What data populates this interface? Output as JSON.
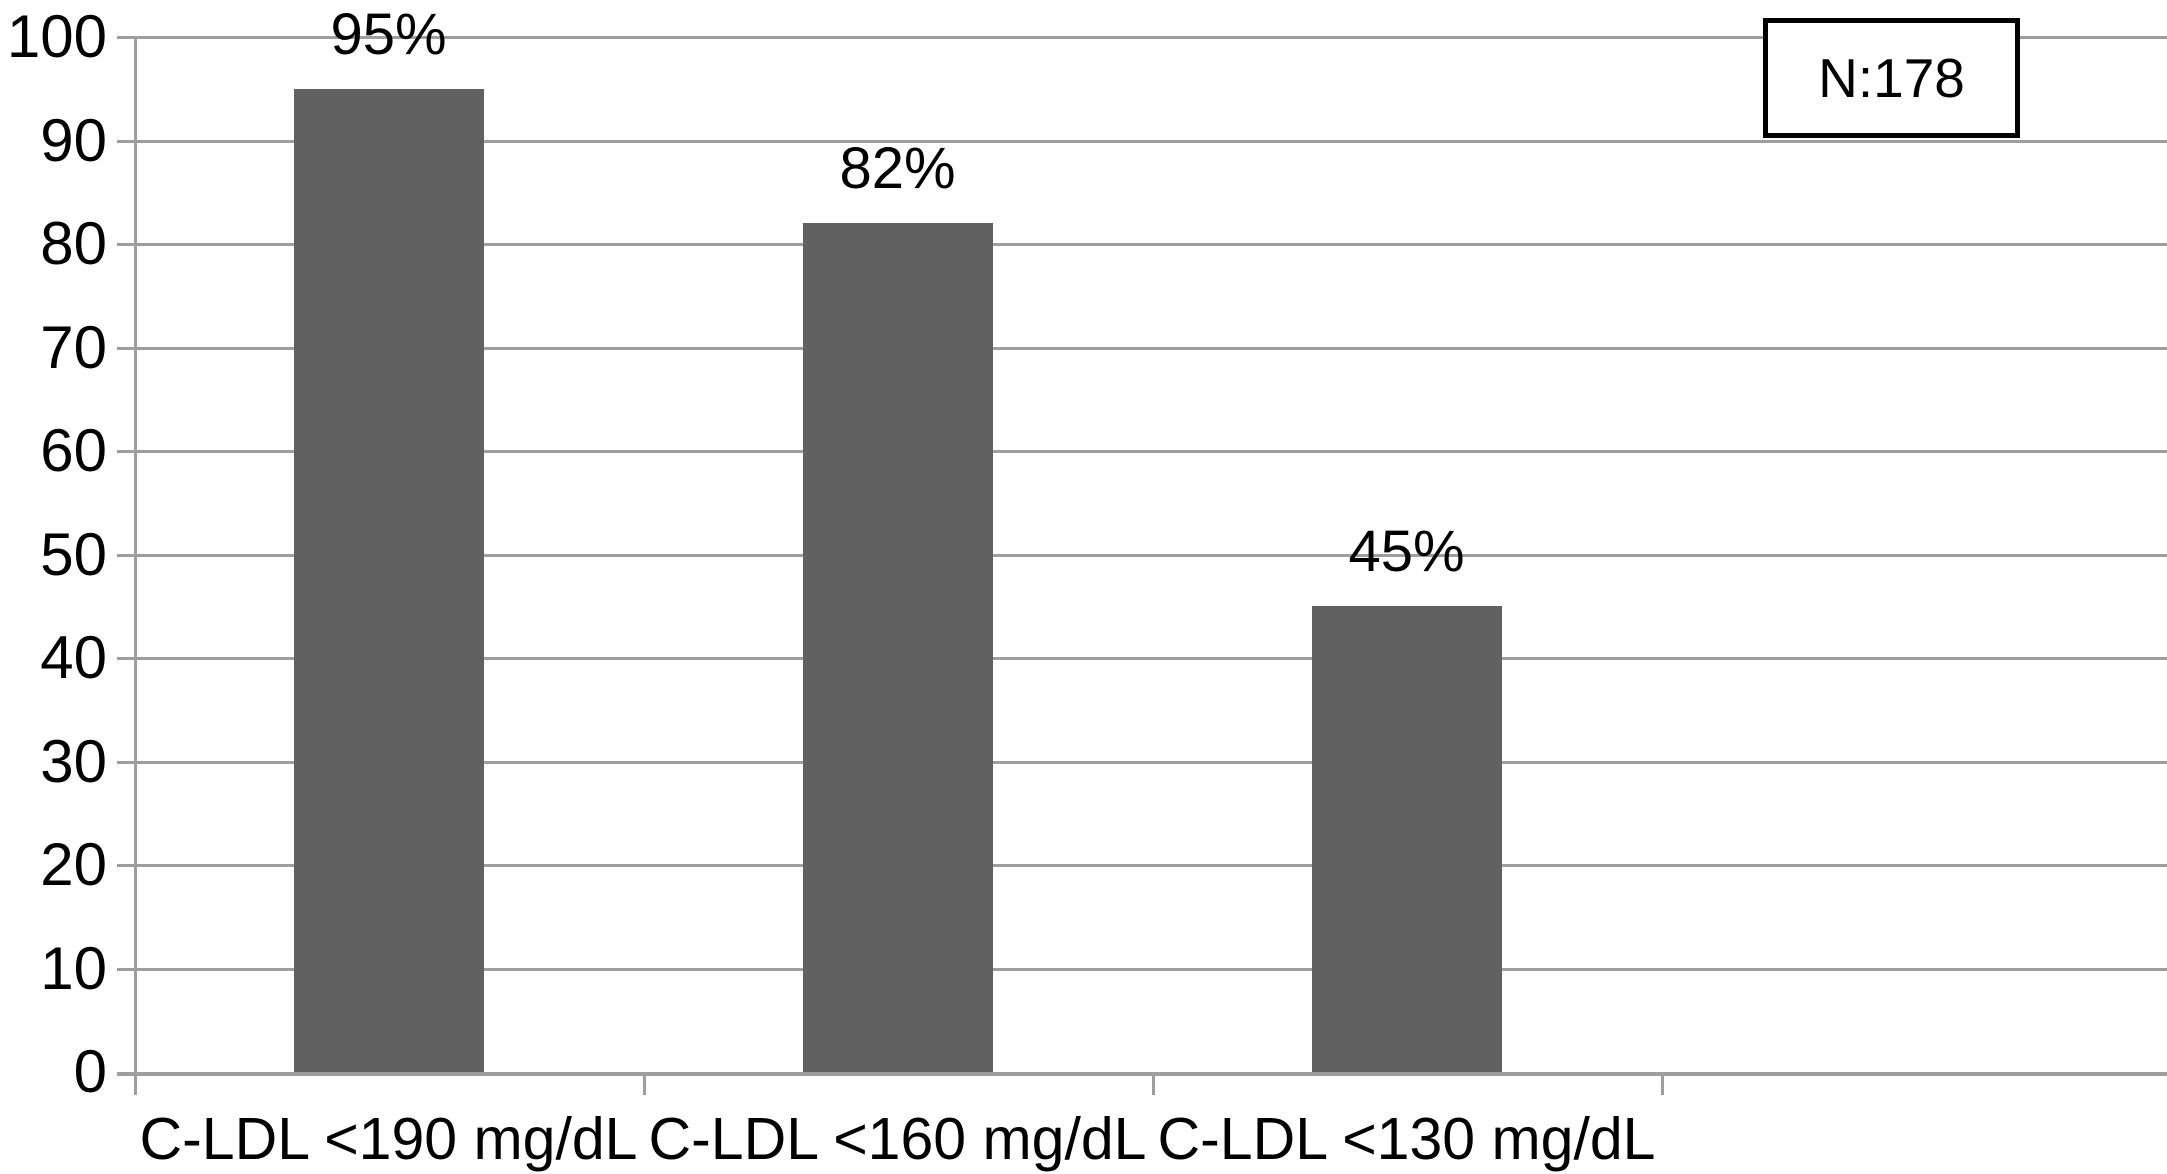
{
  "chart_data": {
    "type": "bar",
    "categories": [
      "C-LDL <190 mg/dL",
      "C-LDL <160 mg/dL",
      "C-LDL <130 mg/dL"
    ],
    "values": [
      95,
      82,
      45
    ],
    "data_labels": [
      "95%",
      "82%",
      "45%"
    ],
    "yticks": [
      "0",
      "10",
      "20",
      "30",
      "40",
      "50",
      "60",
      "70",
      "80",
      "90",
      "100"
    ],
    "ylim": [
      0,
      100
    ],
    "ytick_step": 10,
    "xlabel": "",
    "ylabel": "",
    "title": "",
    "annotation": "N:178",
    "grid": true,
    "legend_position": "none",
    "colors": {
      "bar": "#616161",
      "gridline": "#9e9e9e",
      "axis": "#9e9e9e",
      "text": "#000000",
      "background": "#ffffff",
      "annotation_border": "#000000"
    }
  }
}
